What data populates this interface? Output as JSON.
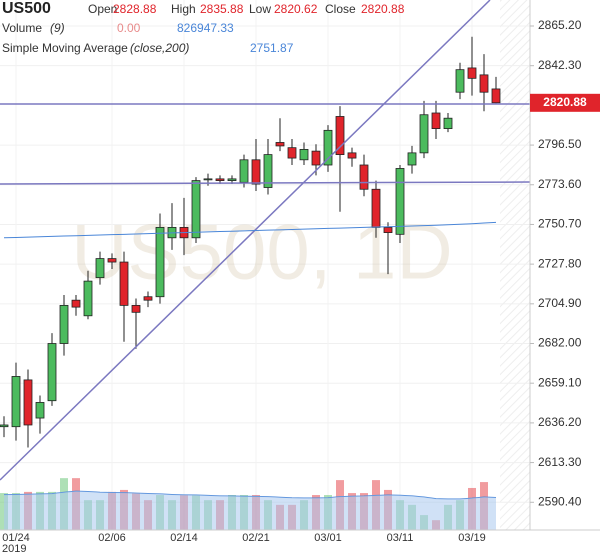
{
  "chart_data": {
    "type": "candlestick",
    "title": "US500",
    "watermark": "US500, 1D",
    "labels": {
      "open": "Open",
      "high": "High",
      "low": "Low",
      "close": "Close",
      "volume": "Volume",
      "volume_len": "(9)",
      "sma": "Simple Moving Average",
      "sma_args": "(close,200)",
      "volume_value": "0.00"
    },
    "year_label": "2019",
    "categories": [
      null,
      "01/24",
      null,
      null,
      null,
      null,
      null,
      null,
      null,
      "02/06",
      null,
      null,
      null,
      null,
      null,
      "02/14",
      null,
      null,
      null,
      null,
      null,
      "02/21",
      null,
      null,
      null,
      null,
      null,
      "03/01",
      null,
      null,
      null,
      null,
      null,
      "03/11",
      null,
      null,
      null,
      null,
      null,
      "03/19",
      null,
      null
    ],
    "open": [
      2634,
      2634,
      2661,
      2639,
      2649,
      2682,
      2707,
      2698,
      2720,
      2731,
      2729,
      2704,
      2709,
      2709,
      2743,
      2749,
      2743,
      2777,
      2777,
      2776,
      2775,
      2788,
      2772,
      2798,
      2795,
      2788,
      2793,
      2785,
      2813,
      2792,
      2785,
      2771,
      2749,
      2745,
      2785,
      2792,
      2815,
      2806,
      2827,
      2841,
      2837,
      2828.88
    ],
    "high": [
      2640,
      2671,
      2667,
      2652,
      2688,
      2710,
      2710,
      2724,
      2735,
      2734,
      2735,
      2708,
      2712,
      2757,
      2763,
      2766,
      2778,
      2780,
      2779,
      2779,
      2791,
      2800,
      2800,
      2812,
      2800,
      2798,
      2797,
      2808,
      2819,
      2795,
      2791,
      2776,
      2752,
      2785,
      2796,
      2822,
      2822,
      2815,
      2844,
      2859,
      2849,
      2835.88
    ],
    "low": [
      2628,
      2626,
      2622,
      2630,
      2646,
      2675,
      2698,
      2696,
      2716,
      2725,
      2683,
      2679,
      2703,
      2705,
      2736,
      2733,
      2740,
      2773,
      2774,
      2774,
      2772,
      2770,
      2768,
      2793,
      2785,
      2785,
      2779,
      2781,
      2758,
      2784,
      2767,
      2743,
      2722,
      2740,
      2780,
      2789,
      2800,
      2804,
      2823,
      2825,
      2816,
      2820.62
    ],
    "close": [
      2635,
      2663,
      2635,
      2648,
      2682,
      2704,
      2703,
      2718,
      2731,
      2729,
      2704,
      2700,
      2707,
      2749,
      2749,
      2743,
      2776,
      2777,
      2776,
      2777,
      2788,
      2774,
      2791,
      2796,
      2789,
      2794,
      2785,
      2805,
      2791,
      2789,
      2771,
      2749,
      2746,
      2783,
      2792,
      2814,
      2806,
      2812,
      2840,
      2835,
      2827,
      2820.88
    ],
    "volume": [
      940000,
      940000,
      970000,
      970000,
      970000,
      1320000,
      1320000,
      760000,
      760000,
      970000,
      1020000,
      940000,
      760000,
      890000,
      760000,
      890000,
      890000,
      760000,
      760000,
      890000,
      890000,
      890000,
      760000,
      640000,
      640000,
      760000,
      890000,
      890000,
      1270000,
      940000,
      940000,
      1270000,
      1020000,
      760000,
      640000,
      380000,
      250000,
      640000,
      760000,
      1070000,
      1220000,
      0
    ],
    "volume_ma": [
      900000,
      905000,
      910000,
      915000,
      925000,
      960000,
      990000,
      980000,
      960000,
      955000,
      950000,
      940000,
      930000,
      920000,
      905000,
      895000,
      890000,
      880000,
      870000,
      865000,
      860000,
      855000,
      850000,
      835000,
      820000,
      815000,
      815000,
      820000,
      850000,
      860000,
      865000,
      880000,
      890000,
      885000,
      870000,
      840000,
      800000,
      790000,
      790000,
      810000,
      840000,
      826947.33
    ],
    "sma": [
      2743,
      2743.2,
      2743.4,
      2743.6,
      2743.8,
      2744,
      2744.2,
      2744.4,
      2744.6,
      2744.8,
      2745,
      2745.2,
      2745.4,
      2745.6,
      2745.8,
      2746,
      2746.2,
      2746.4,
      2746.6,
      2746.8,
      2747,
      2747.2,
      2747.4,
      2747.6,
      2747.8,
      2748,
      2748.2,
      2748.4,
      2748.6,
      2748.8,
      2749,
      2749.2,
      2749.4,
      2749.6,
      2749.8,
      2750,
      2750.2,
      2750.5,
      2750.8,
      2751.1,
      2751.5,
      2751.87
    ],
    "up_color": "#4cbb5e",
    "down_color": "#e0242b",
    "sma_color": "#4a86d8",
    "volume_ma_color": "#a9c8ef",
    "ylim": [
      2574.4,
      2880.2
    ],
    "vlim": [
      0,
      1400000
    ],
    "yticks": [
      {
        "value": 2590.4,
        "label": "2590.40"
      },
      {
        "value": 2613.3,
        "label": "2613.30"
      },
      {
        "value": 2636.2,
        "label": "2636.20"
      },
      {
        "value": 2659.1,
        "label": "2659.10"
      },
      {
        "value": 2682,
        "label": "2682.00"
      },
      {
        "value": 2704.9,
        "label": "2704.90"
      },
      {
        "value": 2727.8,
        "label": "2727.80"
      },
      {
        "value": 2750.7,
        "label": "2750.70"
      },
      {
        "value": 2773.6,
        "label": "2773.60"
      },
      {
        "value": 2796.5,
        "label": "2796.50"
      },
      {
        "value": 2842.3,
        "label": "2842.30"
      },
      {
        "value": 2865.2,
        "label": "2865.20"
      }
    ],
    "grid": true
  }
}
